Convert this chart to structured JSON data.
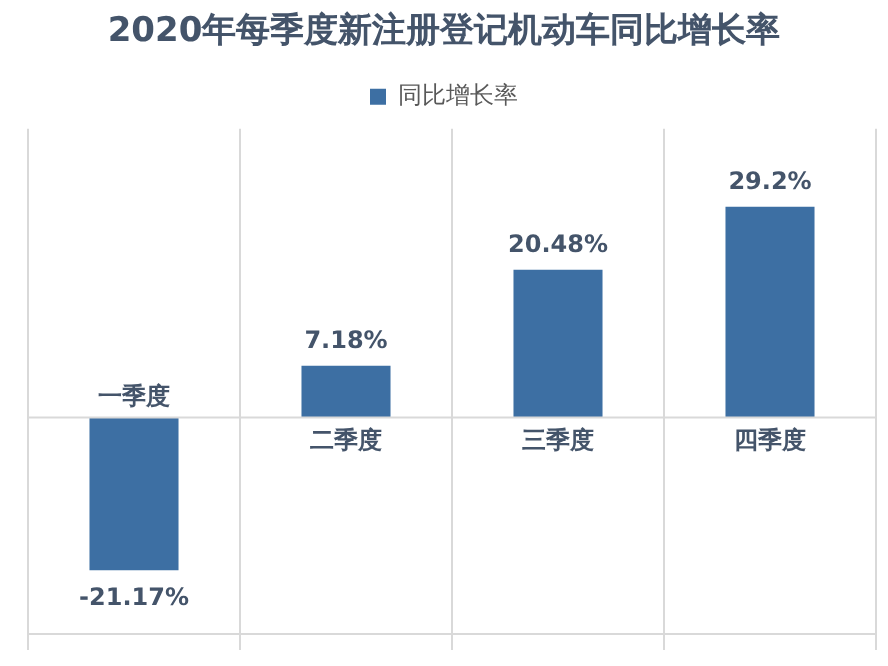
{
  "chart_data": {
    "type": "bar",
    "title": "2020年每季度新注册登记机动车同比增长率",
    "categories": [
      "一季度",
      "二季度",
      "三季度",
      "四季度"
    ],
    "series": [
      {
        "name": "同比增长率",
        "color": "#3d6fa3",
        "values": [
          -21.17,
          7.18,
          20.48,
          29.2
        ],
        "value_labels": [
          "-21.17%",
          "7.18%",
          "20.48%",
          "29.2%"
        ]
      }
    ],
    "ylim": [
      -30,
      40
    ],
    "tick_labels": "x",
    "grid": "x",
    "legend": "top"
  }
}
